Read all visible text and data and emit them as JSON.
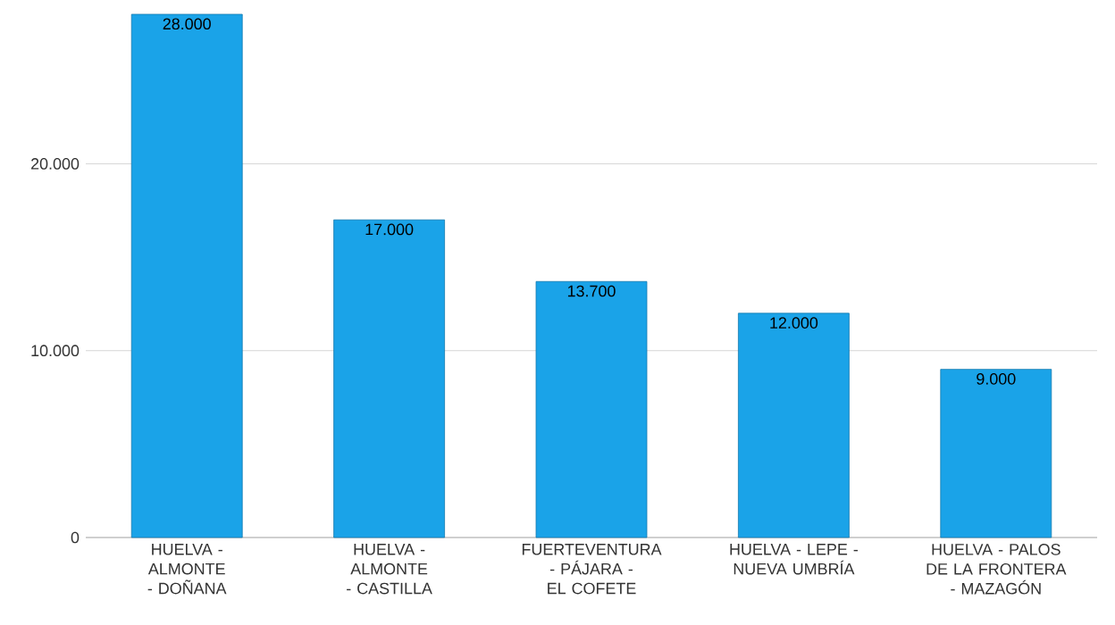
{
  "chart_data": {
    "type": "bar",
    "categories": [
      "HUELVA - ALMONTE - DOÑANA",
      "HUELVA - ALMONTE - CASTILLA",
      "FUERTEVENTURA - PÁJARA - EL COFETE",
      "HUELVA - LEPE - NUEVA UMBRÍA",
      "HUELVA - PALOS DE LA FRONTERA - MAZAGÓN"
    ],
    "values": [
      28000,
      17000,
      13700,
      12000,
      9000
    ],
    "value_labels": [
      "28.000",
      "17.000",
      "13.700",
      "12.000",
      "9.000"
    ],
    "color": "#1aa3e8",
    "ylim": [
      0,
      28000
    ],
    "yticks": [
      0,
      {
        "value": 10000,
        "label": "10.000"
      },
      {
        "value": 20000,
        "label": "20.000"
      }
    ],
    "grid": "y"
  }
}
